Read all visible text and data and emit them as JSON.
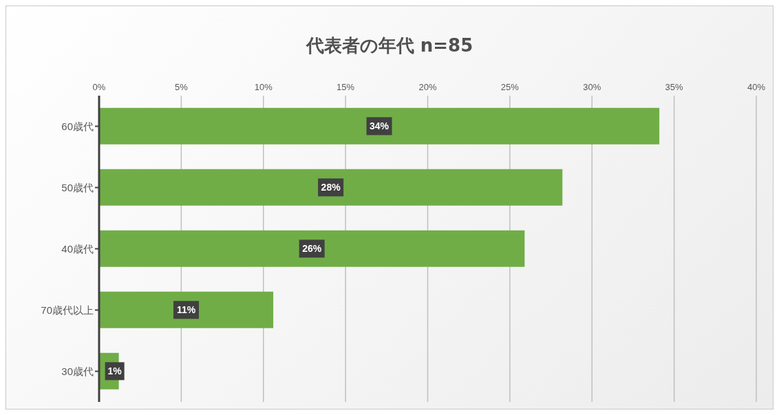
{
  "chart_data": {
    "type": "bar",
    "orientation": "horizontal",
    "title": "代表者の年代 n=85",
    "categories": [
      "60歳代",
      "50歳代",
      "40歳代",
      "70歳代以上",
      "30歳代"
    ],
    "values": [
      34.1,
      28.2,
      25.9,
      10.6,
      1.2
    ],
    "value_labels": [
      "34%",
      "28%",
      "26%",
      "11%",
      "1%"
    ],
    "color": "#70ad47",
    "xlim": [
      0,
      40
    ],
    "xticks": [
      {
        "value": 0,
        "label": "0%"
      },
      {
        "value": 5,
        "label": "5%"
      },
      {
        "value": 10,
        "label": "10%"
      },
      {
        "value": 15,
        "label": "15%"
      },
      {
        "value": 20,
        "label": "20%"
      },
      {
        "value": 25,
        "label": "25%"
      },
      {
        "value": 30,
        "label": "30%"
      },
      {
        "value": 35,
        "label": "35%"
      },
      {
        "value": 40,
        "label": "40%"
      }
    ],
    "grid": "x",
    "legend": false
  }
}
